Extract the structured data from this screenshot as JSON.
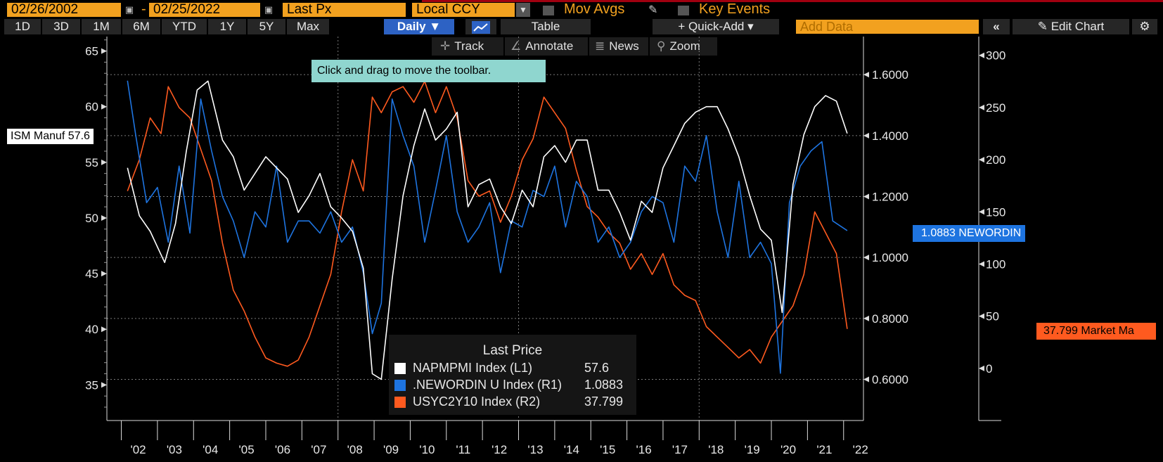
{
  "toolbar": {
    "date_from": "02/26/2002",
    "date_to": "02/25/2022",
    "date_sep": "-",
    "field": "Last Px",
    "currency": "Local CCY",
    "mov_avgs": "Mov Avgs",
    "key_events": "Key Events"
  },
  "ranges": [
    "1D",
    "3D",
    "1M",
    "6M",
    "YTD",
    "1Y",
    "5Y",
    "Max"
  ],
  "periodicity": "Daily",
  "table_label": "Table",
  "quick_add": "+ Quick-Add",
  "add_data_placeholder": "Add Data",
  "edit_chart": "Edit Chart",
  "chart_toolbar": {
    "track": "Track",
    "annotate": "Annotate",
    "news": "News",
    "zoom": "Zoom"
  },
  "tooltip": "Click and drag to move the toolbar.",
  "tags": {
    "left": "ISM Manuf 57.6",
    "right1": "1.0883 NEWORDIN",
    "right2": "37.799 Market Ma"
  },
  "legend": {
    "title": "Last Price",
    "items": [
      {
        "name": "NAPMPMI Index  (L1)",
        "value": "57.6",
        "color": "#ffffff"
      },
      {
        "name": ".NEWORDIN U Index  (R1)",
        "value": "1.0883",
        "color": "#1e74e0"
      },
      {
        "name": "USYC2Y10 Index  (R2)",
        "value": "37.799",
        "color": "#ff5a1f"
      }
    ]
  },
  "colors": {
    "ism": "#ffffff",
    "neword": "#1e74e0",
    "curve": "#ff5a1f",
    "grid": "#7a7a7a"
  },
  "chart_data": {
    "type": "line",
    "x_ticks": [
      "'02",
      "'03",
      "'04",
      "'05",
      "'06",
      "'07",
      "'08",
      "'09",
      "'10",
      "'11",
      "'12",
      "'13",
      "'14",
      "'15",
      "'16",
      "'17",
      "'18",
      "'19",
      "'20",
      "'21",
      "'22"
    ],
    "axes": {
      "L1": {
        "ticks": [
          35,
          40,
          45,
          50,
          55,
          60,
          65
        ],
        "range": [
          31.8,
          66.3
        ]
      },
      "R1": {
        "ticks": [
          0.6,
          0.8,
          1.0,
          1.2,
          1.4,
          1.6
        ],
        "range": [
          0.465,
          1.725
        ]
      },
      "R2": {
        "ticks": [
          0,
          50,
          100,
          150,
          200,
          250,
          300
        ],
        "range": [
          -50,
          318
        ]
      }
    },
    "series": [
      {
        "name": "NAPMPMI Index  (L1)",
        "axis": "L1",
        "x": [
          2002.17,
          2002.5,
          2002.8,
          2003.2,
          2003.5,
          2003.8,
          2004.1,
          2004.4,
          2004.8,
          2005.1,
          2005.4,
          2005.7,
          2006.0,
          2006.3,
          2006.6,
          2006.9,
          2007.2,
          2007.5,
          2007.8,
          2008.1,
          2008.4,
          2008.7,
          2008.95,
          2009.2,
          2009.5,
          2009.8,
          2010.1,
          2010.4,
          2010.7,
          2011.0,
          2011.3,
          2011.6,
          2011.9,
          2012.2,
          2012.5,
          2012.8,
          2013.1,
          2013.4,
          2013.7,
          2014.0,
          2014.3,
          2014.6,
          2014.9,
          2015.2,
          2015.5,
          2015.8,
          2016.1,
          2016.4,
          2016.7,
          2017.0,
          2017.3,
          2017.6,
          2017.9,
          2018.2,
          2018.5,
          2018.8,
          2019.1,
          2019.4,
          2019.7,
          2020.0,
          2020.3,
          2020.6,
          2020.9,
          2021.2,
          2021.5,
          2021.8,
          2022.1
        ],
        "y": [
          54.5,
          50.2,
          48.8,
          46.0,
          49.5,
          56.0,
          61.5,
          62.3,
          57.0,
          55.5,
          52.5,
          54.0,
          55.5,
          54.5,
          53.5,
          50.5,
          52.0,
          54.0,
          51.0,
          50.0,
          48.8,
          45.5,
          36.0,
          35.5,
          44.5,
          52.0,
          56.5,
          59.8,
          57.0,
          58.0,
          59.5,
          51.0,
          53.0,
          53.5,
          51.0,
          49.5,
          52.5,
          51.0,
          55.5,
          56.5,
          55.0,
          57.0,
          57.0,
          52.5,
          52.5,
          50.5,
          48.0,
          51.5,
          50.5,
          54.5,
          56.5,
          58.5,
          59.5,
          60.0,
          60.0,
          58.0,
          55.5,
          52.0,
          49.0,
          48.0,
          41.5,
          53.0,
          57.5,
          60.0,
          61.0,
          60.5,
          57.6
        ]
      },
      {
        "name": ".NEWORDIN U Index  (R1)",
        "axis": "R1",
        "x": [
          2002.17,
          2002.4,
          2002.7,
          2003.0,
          2003.3,
          2003.6,
          2003.9,
          2004.2,
          2004.5,
          2004.8,
          2005.1,
          2005.4,
          2005.7,
          2006.0,
          2006.3,
          2006.6,
          2006.9,
          2007.2,
          2007.5,
          2007.8,
          2008.1,
          2008.4,
          2008.7,
          2008.95,
          2009.2,
          2009.5,
          2009.8,
          2010.1,
          2010.4,
          2010.7,
          2011.0,
          2011.3,
          2011.6,
          2011.9,
          2012.2,
          2012.5,
          2012.8,
          2013.1,
          2013.4,
          2013.7,
          2014.0,
          2014.3,
          2014.6,
          2014.9,
          2015.2,
          2015.5,
          2015.8,
          2016.1,
          2016.4,
          2016.7,
          2017.0,
          2017.3,
          2017.6,
          2017.9,
          2018.2,
          2018.5,
          2018.8,
          2019.1,
          2019.4,
          2019.7,
          2020.0,
          2020.25,
          2020.5,
          2020.8,
          2021.1,
          2021.4,
          2021.7,
          2022.1
        ],
        "y": [
          1.58,
          1.4,
          1.18,
          1.23,
          1.05,
          1.3,
          1.08,
          1.52,
          1.35,
          1.2,
          1.12,
          1.0,
          1.15,
          1.1,
          1.3,
          1.05,
          1.12,
          1.12,
          1.08,
          1.15,
          1.05,
          1.1,
          0.95,
          0.75,
          0.85,
          1.52,
          1.4,
          1.3,
          1.05,
          1.22,
          1.4,
          1.15,
          1.05,
          1.1,
          1.18,
          0.95,
          1.12,
          1.1,
          1.22,
          1.2,
          1.3,
          1.1,
          1.25,
          1.2,
          1.05,
          1.1,
          1.0,
          1.05,
          1.15,
          1.2,
          1.18,
          1.05,
          1.3,
          1.25,
          1.4,
          1.15,
          1.0,
          1.25,
          1.0,
          1.05,
          0.98,
          0.62,
          1.18,
          1.3,
          1.35,
          1.38,
          1.12,
          1.0883
        ]
      },
      {
        "name": "USYC2Y10 Index  (R2)",
        "axis": "R2",
        "x": [
          2002.17,
          2002.5,
          2002.8,
          2003.1,
          2003.3,
          2003.6,
          2003.9,
          2004.2,
          2004.5,
          2004.8,
          2005.1,
          2005.4,
          2005.7,
          2006.0,
          2006.3,
          2006.6,
          2006.9,
          2007.2,
          2007.5,
          2007.8,
          2008.1,
          2008.4,
          2008.7,
          2008.95,
          2009.2,
          2009.5,
          2009.8,
          2010.1,
          2010.4,
          2010.7,
          2011.0,
          2011.3,
          2011.6,
          2011.9,
          2012.2,
          2012.5,
          2012.8,
          2013.1,
          2013.4,
          2013.7,
          2014.0,
          2014.3,
          2014.6,
          2014.9,
          2015.2,
          2015.5,
          2015.8,
          2016.1,
          2016.4,
          2016.7,
          2017.0,
          2017.3,
          2017.6,
          2017.9,
          2018.2,
          2018.5,
          2018.8,
          2019.1,
          2019.4,
          2019.7,
          2020.0,
          2020.3,
          2020.6,
          2020.9,
          2021.2,
          2021.5,
          2021.8,
          2022.1
        ],
        "y": [
          170,
          200,
          240,
          225,
          270,
          250,
          240,
          210,
          180,
          120,
          75,
          55,
          30,
          10,
          5,
          2,
          8,
          30,
          60,
          90,
          150,
          200,
          170,
          260,
          245,
          265,
          270,
          255,
          275,
          245,
          270,
          240,
          180,
          165,
          170,
          140,
          165,
          200,
          220,
          260,
          245,
          230,
          190,
          155,
          145,
          130,
          120,
          95,
          110,
          90,
          110,
          80,
          70,
          65,
          40,
          30,
          20,
          10,
          18,
          5,
          30,
          45,
          60,
          90,
          150,
          130,
          110,
          37.799
        ]
      }
    ]
  }
}
